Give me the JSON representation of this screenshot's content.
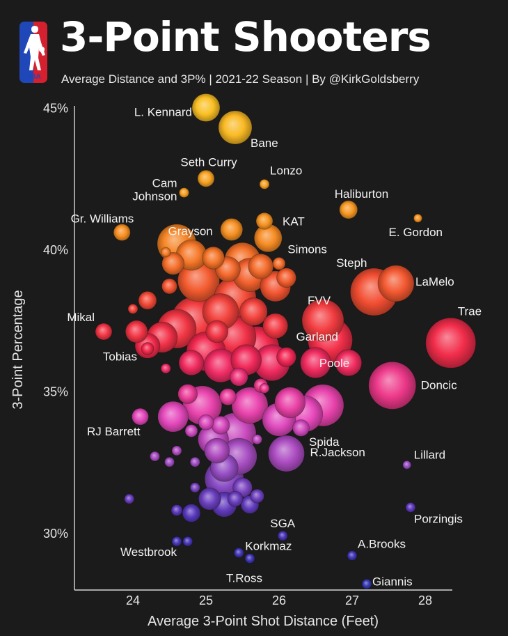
{
  "header": {
    "title": "3-Point Shooters",
    "subtitle": "Average Distance and 3P% | 2021-22 Season | By @KirkGoldsberry",
    "logo_text": "NBA"
  },
  "colors": {
    "background": "#1c1b1b",
    "high_pct": "#f5b524",
    "mid_pct": "#f0273f",
    "mid_low_pct": "#e23fb0",
    "low_pct": "#3838b0"
  },
  "chart_data": {
    "type": "scatter",
    "title": "3-Point Shooters",
    "subtitle": "Average Distance and 3P% | 2021-22 Season | By @KirkGoldsberry",
    "xlabel": "Average 3-Point Shot Distance (Feet)",
    "ylabel": "3-Point Percentage",
    "xlim": [
      23.2,
      28.35
    ],
    "ylim": [
      28.0,
      45.5
    ],
    "x_ticks": [
      24,
      25,
      26,
      27,
      28
    ],
    "x_tick_labels": [
      "24",
      "25",
      "26",
      "27",
      "28"
    ],
    "y_ticks": [
      30,
      35,
      40,
      45
    ],
    "y_tick_labels": [
      "30%",
      "35%",
      "40%",
      "45%"
    ],
    "size_encoding": "bubble size = volume of 3-point attempts",
    "labeled_points": [
      {
        "name": "L. Kennard",
        "x": 25.0,
        "y": 45.0,
        "size": 20
      },
      {
        "name": "Bane",
        "x": 25.4,
        "y": 44.3,
        "size": 24
      },
      {
        "name": "Seth Curry",
        "x": 25.0,
        "y": 42.5,
        "size": 12
      },
      {
        "name": "Cam Johnson",
        "x": 24.7,
        "y": 42.0,
        "size": 7
      },
      {
        "name": "Lonzo",
        "x": 25.8,
        "y": 42.3,
        "size": 7
      },
      {
        "name": "Haliburton",
        "x": 26.95,
        "y": 41.4,
        "size": 13
      },
      {
        "name": "KAT",
        "x": 25.8,
        "y": 41.0,
        "size": 12
      },
      {
        "name": "Gr. Williams",
        "x": 23.85,
        "y": 40.6,
        "size": 12
      },
      {
        "name": "Grayson",
        "x": 25.35,
        "y": 40.7,
        "size": 16
      },
      {
        "name": "E. Gordon",
        "x": 27.9,
        "y": 41.1,
        "size": 6
      },
      {
        "name": "Simons",
        "x": 25.85,
        "y": 40.4,
        "size": 20
      },
      {
        "name": "Steph",
        "x": 27.3,
        "y": 38.5,
        "size": 34
      },
      {
        "name": "LaMelo",
        "x": 27.6,
        "y": 38.8,
        "size": 26
      },
      {
        "name": "FVV",
        "x": 26.6,
        "y": 37.5,
        "size": 30
      },
      {
        "name": "Trae",
        "x": 28.35,
        "y": 36.7,
        "size": 36
      },
      {
        "name": "Mikal",
        "x": 23.6,
        "y": 37.1,
        "size": 12
      },
      {
        "name": "Garland",
        "x": 26.7,
        "y": 36.8,
        "size": 32
      },
      {
        "name": "Poole",
        "x": 26.95,
        "y": 36.0,
        "size": 19
      },
      {
        "name": "Tobias",
        "x": 24.2,
        "y": 36.6,
        "size": 18
      },
      {
        "name": "Doncic",
        "x": 27.55,
        "y": 35.2,
        "size": 34
      },
      {
        "name": "RJ Barrett",
        "x": 24.1,
        "y": 34.1,
        "size": 12
      },
      {
        "name": "Spida",
        "x": 26.6,
        "y": 34.5,
        "size": 30
      },
      {
        "name": "R.Jackson",
        "x": 26.1,
        "y": 32.8,
        "size": 26
      },
      {
        "name": "Lillard",
        "x": 27.75,
        "y": 32.4,
        "size": 6
      },
      {
        "name": "Porzingis",
        "x": 27.8,
        "y": 30.9,
        "size": 7
      },
      {
        "name": "SGA",
        "x": 26.05,
        "y": 29.9,
        "size": 7
      },
      {
        "name": "Westbrook",
        "x": 24.6,
        "y": 29.7,
        "size": 7
      },
      {
        "name": "Korkmaz",
        "x": 25.45,
        "y": 29.3,
        "size": 7
      },
      {
        "name": "A.Brooks",
        "x": 27.0,
        "y": 29.2,
        "size": 7
      },
      {
        "name": "T.Ross",
        "x": 25.6,
        "y": 29.1,
        "size": 7
      },
      {
        "name": "Giannis",
        "x": 27.2,
        "y": 28.2,
        "size": 7
      }
    ],
    "unlabeled_points": [
      {
        "x": 24.6,
        "y": 40.2,
        "size": 28
      },
      {
        "x": 24.8,
        "y": 39.8,
        "size": 22
      },
      {
        "x": 24.9,
        "y": 38.9,
        "size": 30
      },
      {
        "x": 24.55,
        "y": 39.5,
        "size": 16
      },
      {
        "x": 24.2,
        "y": 38.2,
        "size": 13
      },
      {
        "x": 24.0,
        "y": 37.9,
        "size": 7
      },
      {
        "x": 24.5,
        "y": 38.7,
        "size": 11
      },
      {
        "x": 24.45,
        "y": 39.9,
        "size": 7
      },
      {
        "x": 25.1,
        "y": 39.7,
        "size": 16
      },
      {
        "x": 25.3,
        "y": 39.3,
        "size": 18
      },
      {
        "x": 25.5,
        "y": 39.6,
        "size": 26
      },
      {
        "x": 25.6,
        "y": 39.1,
        "size": 24
      },
      {
        "x": 25.75,
        "y": 39.4,
        "size": 18
      },
      {
        "x": 25.95,
        "y": 38.7,
        "size": 22
      },
      {
        "x": 26.1,
        "y": 39.0,
        "size": 14
      },
      {
        "x": 26.0,
        "y": 39.5,
        "size": 9
      },
      {
        "x": 25.4,
        "y": 38.3,
        "size": 30
      },
      {
        "x": 25.2,
        "y": 37.8,
        "size": 26
      },
      {
        "x": 24.85,
        "y": 37.5,
        "size": 34
      },
      {
        "x": 24.6,
        "y": 37.2,
        "size": 28
      },
      {
        "x": 24.4,
        "y": 36.9,
        "size": 22
      },
      {
        "x": 24.05,
        "y": 37.1,
        "size": 16
      },
      {
        "x": 25.0,
        "y": 36.4,
        "size": 28
      },
      {
        "x": 25.4,
        "y": 36.9,
        "size": 30
      },
      {
        "x": 25.7,
        "y": 36.5,
        "size": 32
      },
      {
        "x": 25.9,
        "y": 36.0,
        "size": 26
      },
      {
        "x": 25.55,
        "y": 36.1,
        "size": 22
      },
      {
        "x": 25.95,
        "y": 37.3,
        "size": 18
      },
      {
        "x": 25.65,
        "y": 37.8,
        "size": 20
      },
      {
        "x": 26.1,
        "y": 36.2,
        "size": 14
      },
      {
        "x": 25.2,
        "y": 35.9,
        "size": 24
      },
      {
        "x": 24.8,
        "y": 36.0,
        "size": 18
      },
      {
        "x": 25.45,
        "y": 35.5,
        "size": 13
      },
      {
        "x": 25.75,
        "y": 35.2,
        "size": 10
      },
      {
        "x": 26.5,
        "y": 36.0,
        "size": 22
      },
      {
        "x": 24.2,
        "y": 36.5,
        "size": 9
      },
      {
        "x": 24.45,
        "y": 35.8,
        "size": 7
      },
      {
        "x": 25.15,
        "y": 37.1,
        "size": 16
      },
      {
        "x": 26.35,
        "y": 34.2,
        "size": 26
      },
      {
        "x": 26.15,
        "y": 34.6,
        "size": 22
      },
      {
        "x": 26.0,
        "y": 34.0,
        "size": 24
      },
      {
        "x": 25.6,
        "y": 34.5,
        "size": 26
      },
      {
        "x": 25.4,
        "y": 33.5,
        "size": 30
      },
      {
        "x": 24.95,
        "y": 34.5,
        "size": 28
      },
      {
        "x": 25.1,
        "y": 33.3,
        "size": 22
      },
      {
        "x": 24.55,
        "y": 34.1,
        "size": 22
      },
      {
        "x": 24.75,
        "y": 34.9,
        "size": 14
      },
      {
        "x": 24.8,
        "y": 33.6,
        "size": 9
      },
      {
        "x": 26.3,
        "y": 33.7,
        "size": 12
      },
      {
        "x": 25.3,
        "y": 34.8,
        "size": 12
      },
      {
        "x": 25.45,
        "y": 32.7,
        "size": 26
      },
      {
        "x": 25.25,
        "y": 32.3,
        "size": 20
      },
      {
        "x": 25.15,
        "y": 32.9,
        "size": 18
      },
      {
        "x": 25.25,
        "y": 31.9,
        "size": 28
      },
      {
        "x": 25.5,
        "y": 31.6,
        "size": 14
      },
      {
        "x": 25.05,
        "y": 31.2,
        "size": 16
      },
      {
        "x": 25.25,
        "y": 31.0,
        "size": 18
      },
      {
        "x": 25.6,
        "y": 31.0,
        "size": 13
      },
      {
        "x": 25.7,
        "y": 31.3,
        "size": 10
      },
      {
        "x": 25.4,
        "y": 31.2,
        "size": 11
      },
      {
        "x": 25.0,
        "y": 33.9,
        "size": 11
      },
      {
        "x": 24.85,
        "y": 32.5,
        "size": 7
      },
      {
        "x": 24.6,
        "y": 32.9,
        "size": 7
      },
      {
        "x": 24.3,
        "y": 32.7,
        "size": 7
      },
      {
        "x": 24.5,
        "y": 32.5,
        "size": 7
      },
      {
        "x": 25.2,
        "y": 33.8,
        "size": 13
      },
      {
        "x": 24.85,
        "y": 31.6,
        "size": 7
      },
      {
        "x": 23.95,
        "y": 31.2,
        "size": 7
      },
      {
        "x": 24.6,
        "y": 30.8,
        "size": 8
      },
      {
        "x": 24.8,
        "y": 30.7,
        "size": 13
      },
      {
        "x": 24.75,
        "y": 29.7,
        "size": 7
      },
      {
        "x": 25.7,
        "y": 33.3,
        "size": 7
      },
      {
        "x": 25.8,
        "y": 35.1,
        "size": 7
      }
    ]
  }
}
